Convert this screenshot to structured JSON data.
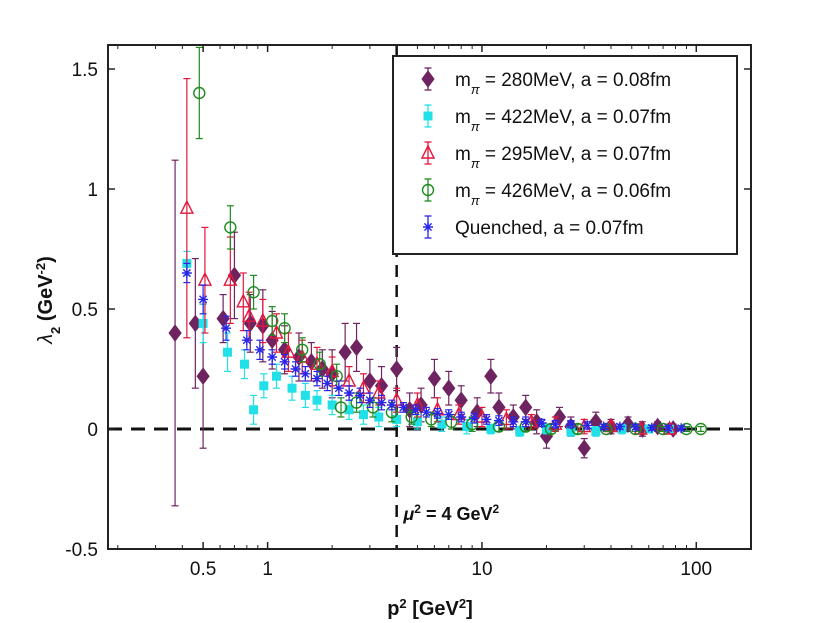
{
  "chart_data": {
    "type": "scatter",
    "x_scale": "log",
    "xlabel": "p",
    "xlabel_sup": "2",
    "xlabel_unit": " [GeV",
    "xlabel_unit_sup": "2",
    "xlabel_end": "]",
    "ylabel": "λ",
    "ylabel_sub": "2",
    "ylabel_unit": " (GeV",
    "ylabel_unit_sup": "-2",
    "ylabel_end": ")",
    "xlim": [
      0.18,
      180
    ],
    "ylim": [
      -0.5,
      1.6
    ],
    "x_ticks": [
      {
        "value": 0.5,
        "label": "0.5"
      },
      {
        "value": 1,
        "label": "1"
      },
      {
        "value": 10,
        "label": "10"
      },
      {
        "value": 100,
        "label": "100"
      }
    ],
    "y_ticks": [
      {
        "value": -0.5,
        "label": "-0.5"
      },
      {
        "value": 0,
        "label": "0"
      },
      {
        "value": 0.5,
        "label": "0.5"
      },
      {
        "value": 1,
        "label": "1"
      },
      {
        "value": 1.5,
        "label": "1.5"
      }
    ],
    "reference_lines": {
      "horizontal_y": 0,
      "vertical_x": 4
    },
    "annotation": {
      "prefix": "μ",
      "sup1": "2",
      "mid": " = 4 GeV",
      "sup2": "2",
      "x": 4.3,
      "y": -0.38
    },
    "legend": {
      "position": "top-right"
    },
    "series": [
      {
        "name": "280MeV, a = 0.08fm",
        "m_label": "m",
        "m_sub": "π",
        "eq": " = ",
        "value_text": "280MeV, a = 0.08fm",
        "marker": "diamond",
        "color": "#6e2460",
        "points": [
          [
            0.37,
            0.4,
            0.72
          ],
          [
            0.46,
            0.44,
            0.27
          ],
          [
            0.5,
            0.22,
            0.3
          ],
          [
            0.62,
            0.46,
            0.1
          ],
          [
            0.7,
            0.64,
            0.18
          ],
          [
            0.83,
            0.44,
            0.12
          ],
          [
            0.95,
            0.43,
            0.15
          ],
          [
            1.05,
            0.37,
            0.12
          ],
          [
            1.2,
            0.33,
            0.1
          ],
          [
            1.4,
            0.3,
            0.1
          ],
          [
            1.6,
            0.28,
            0.08
          ],
          [
            1.8,
            0.25,
            0.08
          ],
          [
            2.0,
            0.23,
            0.1
          ],
          [
            2.3,
            0.32,
            0.12
          ],
          [
            2.6,
            0.34,
            0.1
          ],
          [
            3.0,
            0.2,
            0.09
          ],
          [
            3.4,
            0.18,
            0.08
          ],
          [
            4.0,
            0.25,
            0.09
          ],
          [
            4.6,
            0.08,
            0.07
          ],
          [
            5.2,
            0.1,
            0.07
          ],
          [
            6.0,
            0.21,
            0.08
          ],
          [
            7.0,
            0.17,
            0.07
          ],
          [
            8.0,
            0.12,
            0.06
          ],
          [
            9.5,
            0.07,
            0.06
          ],
          [
            11,
            0.22,
            0.07
          ],
          [
            12,
            0.09,
            0.06
          ],
          [
            14,
            0.05,
            0.05
          ],
          [
            16,
            0.09,
            0.05
          ],
          [
            18,
            0.03,
            0.05
          ],
          [
            20,
            -0.03,
            0.05
          ],
          [
            23,
            0.05,
            0.04
          ],
          [
            26,
            0.01,
            0.04
          ],
          [
            30,
            -0.08,
            0.04
          ],
          [
            34,
            0.03,
            0.04
          ],
          [
            40,
            0.01,
            0.03
          ],
          [
            48,
            0.02,
            0.03
          ],
          [
            56,
            0.0,
            0.03
          ],
          [
            66,
            0.01,
            0.02
          ],
          [
            78,
            0.0,
            0.02
          ]
        ]
      },
      {
        "name": "422MeV, a = 0.07fm",
        "m_label": "m",
        "m_sub": "π",
        "eq": " = ",
        "value_text": "422MeV, a = 0.07fm",
        "marker": "square",
        "color": "#22e0e8",
        "points": [
          [
            0.42,
            0.69,
            0.05
          ],
          [
            0.5,
            0.44,
            0.08
          ],
          [
            0.65,
            0.32,
            0.08
          ],
          [
            0.78,
            0.27,
            0.06
          ],
          [
            0.86,
            0.08,
            0.06
          ],
          [
            0.96,
            0.18,
            0.05
          ],
          [
            1.1,
            0.22,
            0.05
          ],
          [
            1.3,
            0.17,
            0.05
          ],
          [
            1.5,
            0.14,
            0.05
          ],
          [
            1.7,
            0.12,
            0.04
          ],
          [
            2.0,
            0.1,
            0.04
          ],
          [
            2.4,
            0.08,
            0.04
          ],
          [
            2.8,
            0.06,
            0.04
          ],
          [
            3.3,
            0.05,
            0.04
          ],
          [
            4.0,
            0.04,
            0.03
          ],
          [
            5.0,
            0.03,
            0.03
          ],
          [
            6.5,
            0.02,
            0.03
          ],
          [
            8.5,
            0.01,
            0.03
          ],
          [
            11,
            0.0,
            0.02
          ],
          [
            15,
            -0.01,
            0.02
          ],
          [
            20,
            0.0,
            0.02
          ],
          [
            26,
            -0.01,
            0.02
          ],
          [
            34,
            -0.01,
            0.02
          ],
          [
            45,
            0.0,
            0.02
          ],
          [
            60,
            0.0,
            0.01
          ],
          [
            75,
            0.0,
            0.01
          ]
        ]
      },
      {
        "name": "295MeV, a = 0.07fm",
        "m_label": "m",
        "m_sub": "π",
        "eq": " = ",
        "value_text": "295MeV, a = 0.07fm",
        "marker": "triangle",
        "color": "#e3173c",
        "points": [
          [
            0.42,
            0.92,
            0.54
          ],
          [
            0.51,
            0.62,
            0.22
          ],
          [
            0.67,
            0.62,
            0.18
          ],
          [
            0.77,
            0.53,
            0.12
          ],
          [
            0.82,
            0.47,
            0.1
          ],
          [
            0.95,
            0.45,
            0.09
          ],
          [
            1.1,
            0.4,
            0.08
          ],
          [
            1.25,
            0.32,
            0.08
          ],
          [
            1.45,
            0.3,
            0.07
          ],
          [
            1.7,
            0.27,
            0.07
          ],
          [
            2.0,
            0.24,
            0.06
          ],
          [
            2.4,
            0.2,
            0.06
          ],
          [
            2.8,
            0.17,
            0.06
          ],
          [
            3.3,
            0.15,
            0.05
          ],
          [
            4.0,
            0.12,
            0.05
          ],
          [
            5.0,
            0.1,
            0.05
          ],
          [
            6.2,
            0.08,
            0.05
          ],
          [
            7.8,
            0.06,
            0.04
          ],
          [
            10,
            0.05,
            0.04
          ],
          [
            13,
            0.04,
            0.04
          ],
          [
            17,
            0.03,
            0.03
          ],
          [
            22,
            0.02,
            0.03
          ],
          [
            30,
            0.01,
            0.03
          ],
          [
            40,
            0.01,
            0.02
          ],
          [
            55,
            0.0,
            0.02
          ],
          [
            75,
            0.0,
            0.02
          ]
        ]
      },
      {
        "name": "426MeV, a = 0.06fm",
        "m_label": "m",
        "m_sub": "π",
        "eq": " = ",
        "value_text": "426MeV, a = 0.06fm",
        "marker": "circle",
        "color": "#1f8a1f",
        "points": [
          [
            0.48,
            1.4,
            0.19
          ],
          [
            0.67,
            0.84,
            0.09
          ],
          [
            0.86,
            0.57,
            0.07
          ],
          [
            1.05,
            0.45,
            0.06
          ],
          [
            1.2,
            0.42,
            0.06
          ],
          [
            1.45,
            0.33,
            0.05
          ],
          [
            1.75,
            0.27,
            0.05
          ],
          [
            2.1,
            0.22,
            0.05
          ],
          [
            2.2,
            0.09,
            0.04
          ],
          [
            2.6,
            0.11,
            0.04
          ],
          [
            3.1,
            0.09,
            0.04
          ],
          [
            3.8,
            0.07,
            0.04
          ],
          [
            4.7,
            0.05,
            0.03
          ],
          [
            5.8,
            0.04,
            0.03
          ],
          [
            7.2,
            0.03,
            0.03
          ],
          [
            9,
            0.02,
            0.03
          ],
          [
            12,
            0.01,
            0.02
          ],
          [
            16,
            0.01,
            0.02
          ],
          [
            21,
            0.0,
            0.02
          ],
          [
            28,
            0.0,
            0.02
          ],
          [
            38,
            0.0,
            0.01
          ],
          [
            52,
            0.0,
            0.01
          ],
          [
            70,
            0.0,
            0.01
          ],
          [
            90,
            0.0,
            0.01
          ],
          [
            105,
            0.0,
            0.01
          ]
        ]
      },
      {
        "name": "Quenched, a = 0.07fm",
        "m_label": "",
        "m_sub": "",
        "eq": "",
        "value_text": "Quenched,       a = 0.07fm",
        "marker": "asterisk",
        "color": "#2a26e8",
        "points": [
          [
            0.42,
            0.65,
            0.04
          ],
          [
            0.5,
            0.54,
            0.06
          ],
          [
            0.64,
            0.42,
            0.05
          ],
          [
            0.8,
            0.37,
            0.04
          ],
          [
            0.92,
            0.33,
            0.04
          ],
          [
            1.05,
            0.3,
            0.03
          ],
          [
            1.2,
            0.28,
            0.03
          ],
          [
            1.35,
            0.25,
            0.03
          ],
          [
            1.5,
            0.23,
            0.03
          ],
          [
            1.7,
            0.21,
            0.03
          ],
          [
            1.9,
            0.19,
            0.03
          ],
          [
            2.15,
            0.17,
            0.03
          ],
          [
            2.4,
            0.15,
            0.03
          ],
          [
            2.7,
            0.14,
            0.03
          ],
          [
            3.0,
            0.12,
            0.03
          ],
          [
            3.4,
            0.11,
            0.03
          ],
          [
            3.8,
            0.1,
            0.02
          ],
          [
            4.3,
            0.09,
            0.02
          ],
          [
            4.9,
            0.08,
            0.02
          ],
          [
            5.5,
            0.07,
            0.02
          ],
          [
            6.2,
            0.065,
            0.02
          ],
          [
            7.0,
            0.06,
            0.02
          ],
          [
            8.0,
            0.05,
            0.02
          ],
          [
            9.2,
            0.045,
            0.02
          ],
          [
            10.5,
            0.04,
            0.02
          ],
          [
            12,
            0.035,
            0.02
          ],
          [
            14,
            0.03,
            0.02
          ],
          [
            16,
            0.03,
            0.02
          ],
          [
            19,
            0.025,
            0.015
          ],
          [
            22,
            0.02,
            0.015
          ],
          [
            26,
            0.02,
            0.015
          ],
          [
            31,
            0.015,
            0.015
          ],
          [
            37,
            0.01,
            0.01
          ],
          [
            44,
            0.01,
            0.01
          ],
          [
            52,
            0.008,
            0.01
          ],
          [
            62,
            0.005,
            0.01
          ],
          [
            74,
            0.004,
            0.01
          ],
          [
            85,
            0.003,
            0.01
          ]
        ]
      }
    ]
  }
}
